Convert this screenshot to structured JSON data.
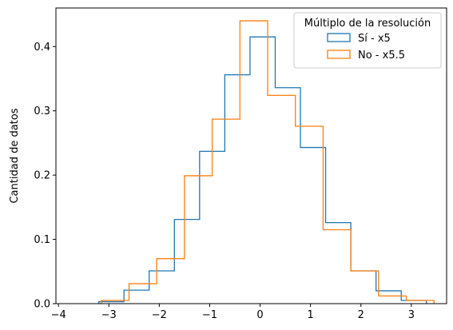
{
  "chart_data": {
    "type": "histogram",
    "xlabel": "",
    "ylabel": "Cantidad de datos",
    "xlim": [
      -4.05,
      3.7
    ],
    "ylim": [
      0,
      0.46
    ],
    "xticks": [
      -4,
      -3,
      -2,
      -1,
      0,
      1,
      2,
      3
    ],
    "yticks": [
      0.0,
      0.1,
      0.2,
      0.3,
      0.4
    ],
    "grid": false,
    "legend": {
      "title": "Múltiplo de la resolución",
      "position": "top-right",
      "entries": [
        "Sí - x5",
        "No - x5.5"
      ]
    },
    "series": [
      {
        "name": "Sí - x5",
        "color": "#1f77b4",
        "bin_edges": [
          -3.2,
          -2.7,
          -2.2,
          -1.7,
          -1.2,
          -0.7,
          -0.2,
          0.3,
          0.8,
          1.3,
          1.8,
          2.3,
          2.8,
          3.3
        ],
        "values": [
          0.003,
          0.021,
          0.051,
          0.131,
          0.237,
          0.356,
          0.415,
          0.336,
          0.243,
          0.126,
          0.051,
          0.02,
          0.005
        ]
      },
      {
        "name": "No - x5.5",
        "color": "#ff7f0e",
        "bin_edges": [
          -3.15,
          -2.6,
          -2.05,
          -1.5,
          -0.95,
          -0.4,
          0.15,
          0.7,
          1.25,
          1.8,
          2.35,
          2.9,
          3.45
        ],
        "values": [
          0.005,
          0.031,
          0.07,
          0.199,
          0.287,
          0.44,
          0.324,
          0.276,
          0.115,
          0.051,
          0.012,
          0.005
        ]
      }
    ]
  }
}
